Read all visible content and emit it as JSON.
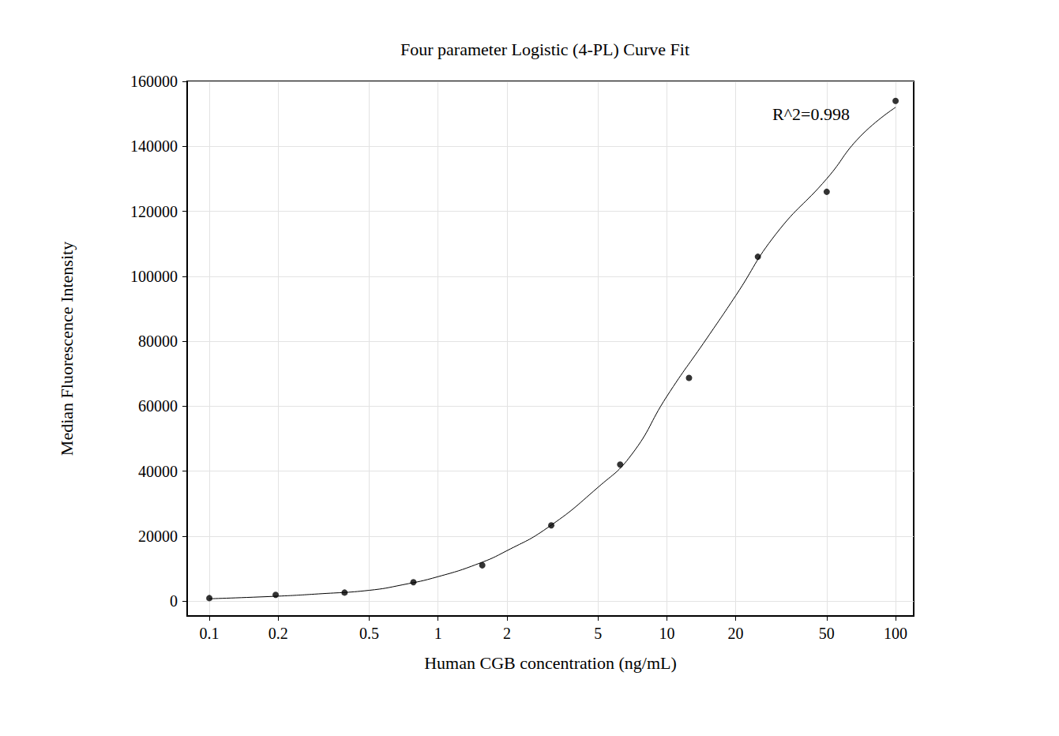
{
  "chart_data": {
    "type": "scatter",
    "title": "Four parameter Logistic (4-PL) Curve Fit",
    "x_label": "Human CGB concentration (ng/mL)",
    "y_label": "Median Fluorescence Intensity",
    "annotations": [
      "R^2=0.998"
    ],
    "log": "x",
    "grid": true,
    "xlim": [
      0.08,
      120
    ],
    "xticks": [
      0.1,
      0.2,
      0.5,
      1,
      2,
      5,
      10,
      20,
      50,
      100
    ],
    "ylim": [
      -4600,
      160000
    ],
    "yticks": [
      0,
      20000,
      40000,
      60000,
      80000,
      100000,
      120000,
      140000,
      160000
    ],
    "series": [
      {
        "type": "scatter",
        "marker": "circle",
        "color": "#000000",
        "x": [
          0.1,
          0.195,
          0.39,
          0.78,
          1.56,
          3.125,
          6.25,
          12.5,
          25,
          50,
          100
        ],
        "values": [
          900,
          1900,
          2600,
          5800,
          11000,
          23300,
          42000,
          68700,
          106000,
          126000,
          154000
        ]
      },
      {
        "type": "line",
        "line_style": "solid",
        "color": "#000000",
        "x": [
          0.1,
          0.2,
          0.3,
          0.5,
          0.7,
          1,
          1.5,
          2,
          3,
          5,
          7,
          10,
          15,
          20,
          30,
          50,
          70,
          100
        ],
        "values": [
          700,
          1500,
          2200,
          3300,
          5000,
          7500,
          11500,
          15500,
          22500,
          35000,
          45000,
          63000,
          81000,
          94000,
          113000,
          130000,
          143000,
          152000
        ]
      }
    ]
  }
}
